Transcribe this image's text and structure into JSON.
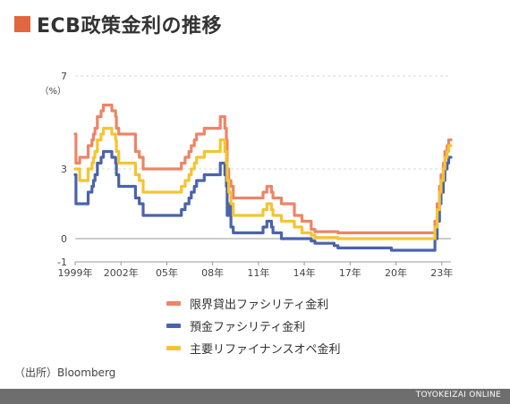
{
  "title": "ECB政策金利の推移",
  "colors": {
    "accent": "#e0673f",
    "grid": "#cccccc",
    "footer": "#6e6e6e"
  },
  "chart_data": {
    "type": "line",
    "step": true,
    "yunit": "（%）",
    "ylim": [
      -1,
      7
    ],
    "yticks": [
      7,
      3,
      0,
      -1
    ],
    "xlim": [
      1999,
      2023.6
    ],
    "xticks": [
      {
        "x": 1999,
        "label": "1999年"
      },
      {
        "x": 2002,
        "label": "2002年"
      },
      {
        "x": 2005,
        "label": "05年"
      },
      {
        "x": 2008,
        "label": "08年"
      },
      {
        "x": 2011,
        "label": "11年"
      },
      {
        "x": 2014,
        "label": "14年"
      },
      {
        "x": 2017,
        "label": "17年"
      },
      {
        "x": 2020,
        "label": "20年"
      },
      {
        "x": 2023,
        "label": "23年"
      }
    ],
    "grid": true,
    "legend_position": "bottom",
    "series": [
      {
        "name": "限界貸出ファシリティ金利",
        "color": "#ee8466",
        "points": [
          [
            1999.0,
            4.5
          ],
          [
            1999.05,
            3.25
          ],
          [
            1999.3,
            3.5
          ],
          [
            1999.85,
            4.0
          ],
          [
            2000.1,
            4.25
          ],
          [
            2000.2,
            4.5
          ],
          [
            2000.3,
            4.75
          ],
          [
            2000.45,
            5.25
          ],
          [
            2000.7,
            5.5
          ],
          [
            2000.85,
            5.75
          ],
          [
            2001.4,
            5.5
          ],
          [
            2001.65,
            5.25
          ],
          [
            2001.7,
            4.75
          ],
          [
            2001.85,
            4.5
          ],
          [
            2002.95,
            3.75
          ],
          [
            2003.2,
            3.5
          ],
          [
            2003.45,
            3.0
          ],
          [
            2005.95,
            3.25
          ],
          [
            2006.2,
            3.5
          ],
          [
            2006.45,
            3.75
          ],
          [
            2006.6,
            4.0
          ],
          [
            2006.8,
            4.25
          ],
          [
            2006.95,
            4.5
          ],
          [
            2007.45,
            4.75
          ],
          [
            2008.5,
            5.25
          ],
          [
            2008.8,
            4.75
          ],
          [
            2008.9,
            4.25
          ],
          [
            2008.95,
            3.0
          ],
          [
            2009.05,
            2.5
          ],
          [
            2009.2,
            2.25
          ],
          [
            2009.35,
            1.75
          ],
          [
            2011.3,
            2.0
          ],
          [
            2011.55,
            2.25
          ],
          [
            2011.85,
            2.0
          ],
          [
            2011.95,
            1.75
          ],
          [
            2012.5,
            1.5
          ],
          [
            2013.35,
            1.0
          ],
          [
            2013.85,
            0.75
          ],
          [
            2014.45,
            0.4
          ],
          [
            2014.7,
            0.3
          ],
          [
            2016.2,
            0.25
          ],
          [
            2022.55,
            0.75
          ],
          [
            2022.7,
            1.5
          ],
          [
            2022.85,
            2.25
          ],
          [
            2022.95,
            2.75
          ],
          [
            2023.1,
            3.25
          ],
          [
            2023.2,
            3.75
          ],
          [
            2023.35,
            4.0
          ],
          [
            2023.45,
            4.25
          ],
          [
            2023.6,
            4.25
          ]
        ]
      },
      {
        "name": "預金ファシリティ金利",
        "color": "#4a63ad",
        "points": [
          [
            1999.0,
            2.75
          ],
          [
            1999.05,
            1.5
          ],
          [
            1999.3,
            1.5
          ],
          [
            1999.85,
            2.0
          ],
          [
            2000.1,
            2.25
          ],
          [
            2000.2,
            2.5
          ],
          [
            2000.3,
            2.75
          ],
          [
            2000.45,
            3.25
          ],
          [
            2000.7,
            3.5
          ],
          [
            2000.85,
            3.75
          ],
          [
            2001.4,
            3.5
          ],
          [
            2001.65,
            3.25
          ],
          [
            2001.7,
            2.75
          ],
          [
            2001.85,
            2.25
          ],
          [
            2002.95,
            1.75
          ],
          [
            2003.2,
            1.5
          ],
          [
            2003.45,
            1.0
          ],
          [
            2005.95,
            1.25
          ],
          [
            2006.2,
            1.5
          ],
          [
            2006.45,
            1.75
          ],
          [
            2006.6,
            2.0
          ],
          [
            2006.8,
            2.25
          ],
          [
            2006.95,
            2.5
          ],
          [
            2007.45,
            2.75
          ],
          [
            2008.5,
            3.25
          ],
          [
            2008.8,
            2.75
          ],
          [
            2008.9,
            2.25
          ],
          [
            2008.95,
            1.0
          ],
          [
            2009.05,
            1.5
          ],
          [
            2009.2,
            0.5
          ],
          [
            2009.35,
            0.25
          ],
          [
            2011.3,
            0.5
          ],
          [
            2011.55,
            0.75
          ],
          [
            2011.85,
            0.5
          ],
          [
            2011.95,
            0.25
          ],
          [
            2012.5,
            0.0
          ],
          [
            2014.45,
            -0.1
          ],
          [
            2014.7,
            -0.2
          ],
          [
            2015.95,
            -0.3
          ],
          [
            2016.2,
            -0.4
          ],
          [
            2019.7,
            -0.5
          ],
          [
            2022.55,
            0.0
          ],
          [
            2022.7,
            0.75
          ],
          [
            2022.85,
            1.5
          ],
          [
            2022.95,
            2.0
          ],
          [
            2023.1,
            2.5
          ],
          [
            2023.2,
            3.0
          ],
          [
            2023.35,
            3.25
          ],
          [
            2023.45,
            3.5
          ],
          [
            2023.6,
            3.5
          ]
        ]
      },
      {
        "name": "主要リファイナンスオペ金利",
        "color": "#f5c431",
        "points": [
          [
            1999.0,
            3.0
          ],
          [
            1999.05,
            3.0
          ],
          [
            1999.3,
            2.5
          ],
          [
            1999.85,
            3.0
          ],
          [
            2000.1,
            3.25
          ],
          [
            2000.2,
            3.5
          ],
          [
            2000.3,
            3.75
          ],
          [
            2000.45,
            4.25
          ],
          [
            2000.7,
            4.5
          ],
          [
            2000.85,
            4.75
          ],
          [
            2001.4,
            4.5
          ],
          [
            2001.65,
            4.25
          ],
          [
            2001.7,
            3.75
          ],
          [
            2001.85,
            3.25
          ],
          [
            2002.95,
            2.75
          ],
          [
            2003.2,
            2.5
          ],
          [
            2003.45,
            2.0
          ],
          [
            2005.95,
            2.25
          ],
          [
            2006.2,
            2.5
          ],
          [
            2006.45,
            2.75
          ],
          [
            2006.6,
            3.0
          ],
          [
            2006.8,
            3.25
          ],
          [
            2006.95,
            3.5
          ],
          [
            2007.45,
            3.75
          ],
          [
            2008.5,
            4.25
          ],
          [
            2008.8,
            3.75
          ],
          [
            2008.9,
            3.25
          ],
          [
            2008.95,
            2.5
          ],
          [
            2009.05,
            2.0
          ],
          [
            2009.2,
            1.5
          ],
          [
            2009.35,
            1.0
          ],
          [
            2011.3,
            1.25
          ],
          [
            2011.55,
            1.5
          ],
          [
            2011.85,
            1.25
          ],
          [
            2011.95,
            1.0
          ],
          [
            2012.5,
            0.75
          ],
          [
            2013.35,
            0.5
          ],
          [
            2013.85,
            0.25
          ],
          [
            2014.45,
            0.15
          ],
          [
            2014.7,
            0.05
          ],
          [
            2016.2,
            0.0
          ],
          [
            2022.55,
            0.5
          ],
          [
            2022.7,
            1.25
          ],
          [
            2022.85,
            2.0
          ],
          [
            2022.95,
            2.5
          ],
          [
            2023.1,
            3.0
          ],
          [
            2023.2,
            3.5
          ],
          [
            2023.35,
            3.75
          ],
          [
            2023.45,
            4.0
          ],
          [
            2023.6,
            4.0
          ]
        ]
      }
    ]
  },
  "source": "（出所）Bloomberg",
  "footer": "TOYOKEIZAI ONLINE"
}
